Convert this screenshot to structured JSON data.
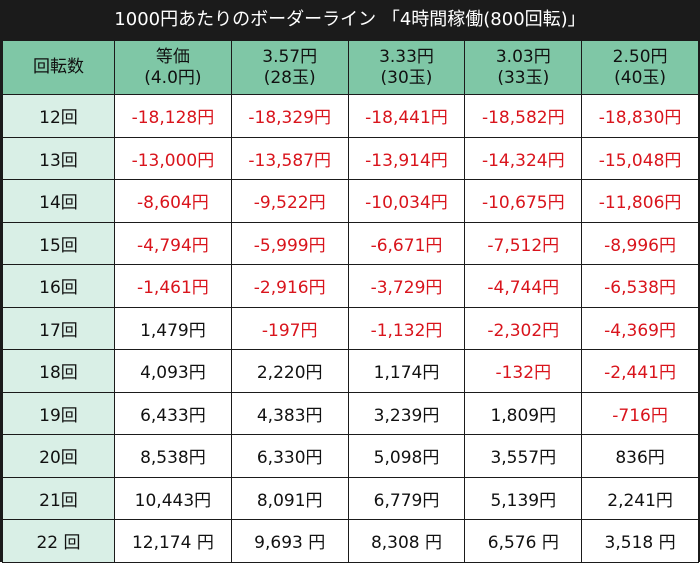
{
  "title": "1000円あたりのボーダーライン 「4時間稼働(800回転)」",
  "colors": {
    "header_bg": "#7fc7a6",
    "rowhead_bg": "#d9efe6",
    "negative": "#d9141c",
    "positive": "#111111",
    "frame": "#1b1b1b"
  },
  "table": {
    "corner_label": "回転数",
    "columns": [
      {
        "line1": "等価",
        "line2": "(4.0円)"
      },
      {
        "line1": "3.57円",
        "line2": "(28玉)"
      },
      {
        "line1": "3.33円",
        "line2": "(30玉)"
      },
      {
        "line1": "3.03円",
        "line2": "(33玉)"
      },
      {
        "line1": "2.50円",
        "line2": "(40玉)"
      }
    ],
    "rows": [
      {
        "label": "12回",
        "values": [
          "-18,128円",
          "-18,329円",
          "-18,441円",
          "-18,582円",
          "-18,830円"
        ]
      },
      {
        "label": "13回",
        "values": [
          "-13,000円",
          "-13,587円",
          "-13,914円",
          "-14,324円",
          "-15,048円"
        ]
      },
      {
        "label": "14回",
        "values": [
          "-8,604円",
          "-9,522円",
          "-10,034円",
          "-10,675円",
          "-11,806円"
        ]
      },
      {
        "label": "15回",
        "values": [
          "-4,794円",
          "-5,999円",
          "-6,671円",
          "-7,512円",
          "-8,996円"
        ]
      },
      {
        "label": "16回",
        "values": [
          "-1,461円",
          "-2,916円",
          "-3,729円",
          "-4,744円",
          "-6,538円"
        ]
      },
      {
        "label": "17回",
        "values": [
          "1,479円",
          "-197円",
          "-1,132円",
          "-2,302円",
          "-4,369円"
        ]
      },
      {
        "label": "18回",
        "values": [
          "4,093円",
          "2,220円",
          "1,174円",
          "-132円",
          "-2,441円"
        ]
      },
      {
        "label": "19回",
        "values": [
          "6,433円",
          "4,383円",
          "3,239円",
          "1,809円",
          "-716円"
        ]
      },
      {
        "label": "20回",
        "values": [
          "8,538円",
          "6,330円",
          "5,098円",
          "3,557円",
          "836円"
        ]
      },
      {
        "label": "21回",
        "values": [
          "10,443円",
          "8,091円",
          "6,779円",
          "5,139円",
          "2,241円"
        ]
      },
      {
        "label": "22 回",
        "values": [
          "12,174 円",
          "9,693 円",
          "8,308 円",
          "6,576 円",
          "3,518 円"
        ]
      }
    ]
  }
}
